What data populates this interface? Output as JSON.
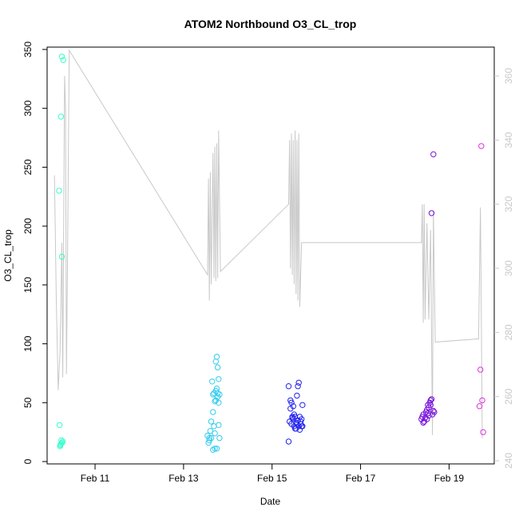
{
  "chart_data": {
    "type": "scatter",
    "title": "ATOM2 Northbound O3_CL_trop",
    "xlabel": "Date",
    "ylabel": "O3_CL_trop",
    "x_axis": {
      "unit": "date",
      "range": [
        "2016-02-09 22:00",
        "2016-02-20 00:30"
      ],
      "ticks": [
        {
          "value": "2016-02-11",
          "label": "Feb 11"
        },
        {
          "value": "2016-02-13",
          "label": "Feb 13"
        },
        {
          "value": "2016-02-15",
          "label": "Feb 15"
        },
        {
          "value": "2016-02-17",
          "label": "Feb 17"
        },
        {
          "value": "2016-02-19",
          "label": "Feb 19"
        }
      ]
    },
    "y_left": {
      "range": [
        -2,
        352
      ],
      "ticks": [
        0,
        50,
        100,
        150,
        200,
        250,
        300,
        350
      ]
    },
    "y_right": {
      "range": [
        239,
        369
      ],
      "ticks": [
        240,
        260,
        280,
        300,
        320,
        340,
        360
      ],
      "color": "#c8c8c8"
    },
    "series": [
      {
        "color": "#33ffcc",
        "points": [
          [
            "2016-02-10 04:30",
            230
          ],
          [
            "2016-02-10 05:30",
            293
          ],
          [
            "2016-02-10 06:00",
            344
          ],
          [
            "2016-02-10 06:45",
            341
          ],
          [
            "2016-02-10 06:00",
            174
          ],
          [
            "2016-02-10 04:45",
            31
          ],
          [
            "2016-02-10 05:00",
            13
          ],
          [
            "2016-02-10 05:30",
            15
          ],
          [
            "2016-02-10 05:45",
            18
          ],
          [
            "2016-02-10 06:00",
            16
          ],
          [
            "2016-02-10 06:30",
            17
          ],
          [
            "2016-02-10 05:15",
            14
          ]
        ]
      },
      {
        "color": "#33ccee",
        "points": [
          [
            "2016-02-13 13:00",
            22
          ],
          [
            "2016-02-13 13:30",
            16
          ],
          [
            "2016-02-13 14:00",
            18
          ],
          [
            "2016-02-13 14:30",
            26
          ],
          [
            "2016-02-13 15:00",
            34
          ],
          [
            "2016-02-13 15:30",
            68
          ],
          [
            "2016-02-13 16:00",
            42
          ],
          [
            "2016-02-13 16:30",
            58
          ],
          [
            "2016-02-13 17:00",
            51
          ],
          [
            "2016-02-13 17:30",
            60
          ],
          [
            "2016-02-13 18:00",
            62
          ],
          [
            "2016-02-13 18:30",
            55
          ],
          [
            "2016-02-13 19:00",
            70
          ],
          [
            "2016-02-13 17:30",
            85
          ],
          [
            "2016-02-13 18:00",
            89
          ],
          [
            "2016-02-13 18:30",
            80
          ],
          [
            "2016-02-13 16:00",
            10
          ],
          [
            "2016-02-13 17:00",
            11
          ],
          [
            "2016-02-13 18:00",
            11
          ],
          [
            "2016-02-13 19:00",
            31
          ],
          [
            "2016-02-13 19:30",
            20
          ],
          [
            "2016-02-13 15:00",
            20
          ],
          [
            "2016-02-13 16:30",
            30
          ],
          [
            "2016-02-13 18:30",
            58
          ],
          [
            "2016-02-13 17:00",
            24
          ],
          [
            "2016-02-13 19:00",
            50
          ],
          [
            "2016-02-13 14:00",
            20
          ],
          [
            "2016-02-13 16:00",
            57
          ],
          [
            "2016-02-13 17:30",
            52
          ],
          [
            "2016-02-13 19:30",
            57
          ]
        ]
      },
      {
        "color": "#2222ee",
        "points": [
          [
            "2016-02-15 09:00",
            17
          ],
          [
            "2016-02-15 09:30",
            34
          ],
          [
            "2016-02-15 10:00",
            52
          ],
          [
            "2016-02-15 10:30",
            50
          ],
          [
            "2016-02-15 11:00",
            38
          ],
          [
            "2016-02-15 11:30",
            36
          ],
          [
            "2016-02-15 12:00",
            30
          ],
          [
            "2016-02-15 12:30",
            28
          ],
          [
            "2016-02-15 13:00",
            33
          ],
          [
            "2016-02-15 13:30",
            56
          ],
          [
            "2016-02-15 14:00",
            64
          ],
          [
            "2016-02-15 14:30",
            67
          ],
          [
            "2016-02-15 15:00",
            38
          ],
          [
            "2016-02-15 15:30",
            32
          ],
          [
            "2016-02-15 16:00",
            30
          ],
          [
            "2016-02-15 16:30",
            48
          ],
          [
            "2016-02-15 09:00",
            64
          ],
          [
            "2016-02-15 10:00",
            45
          ],
          [
            "2016-02-15 11:00",
            37
          ],
          [
            "2016-02-15 12:00",
            40
          ],
          [
            "2016-02-15 13:00",
            28
          ],
          [
            "2016-02-15 14:00",
            35
          ],
          [
            "2016-02-15 15:00",
            27
          ],
          [
            "2016-02-15 16:00",
            36
          ],
          [
            "2016-02-15 10:30",
            32
          ],
          [
            "2016-02-15 12:30",
            38
          ],
          [
            "2016-02-15 14:30",
            30
          ],
          [
            "2016-02-15 16:30",
            30
          ],
          [
            "2016-02-15 11:30",
            47
          ],
          [
            "2016-02-15 13:30",
            32
          ],
          [
            "2016-02-15 15:30",
            34
          ]
        ]
      },
      {
        "color": "#7711dd",
        "points": [
          [
            "2016-02-18 09:00",
            36
          ],
          [
            "2016-02-18 09:30",
            38
          ],
          [
            "2016-02-18 10:00",
            40
          ],
          [
            "2016-02-18 10:30",
            34
          ],
          [
            "2016-02-18 11:00",
            37
          ],
          [
            "2016-02-18 11:30",
            42
          ],
          [
            "2016-02-18 12:00",
            44
          ],
          [
            "2016-02-18 12:30",
            48
          ],
          [
            "2016-02-18 13:00",
            46
          ],
          [
            "2016-02-18 13:30",
            50
          ],
          [
            "2016-02-18 14:00",
            52
          ],
          [
            "2016-02-18 14:30",
            53
          ],
          [
            "2016-02-18 15:00",
            40
          ],
          [
            "2016-02-18 15:30",
            43
          ],
          [
            "2016-02-18 16:00",
            42
          ],
          [
            "2016-02-18 14:30",
            211
          ],
          [
            "2016-02-18 15:30",
            261
          ],
          [
            "2016-02-18 12:00",
            36
          ],
          [
            "2016-02-18 13:00",
            39
          ],
          [
            "2016-02-18 14:00",
            48
          ],
          [
            "2016-02-18 10:00",
            33
          ],
          [
            "2016-02-18 12:30",
            41
          ]
        ]
      },
      {
        "color": "#dd33dd",
        "points": [
          [
            "2016-02-19 17:30",
            268
          ],
          [
            "2016-02-19 17:00",
            78
          ],
          [
            "2016-02-19 18:00",
            52
          ],
          [
            "2016-02-19 16:30",
            47
          ],
          [
            "2016-02-19 18:30",
            25
          ]
        ]
      }
    ],
    "line_series": {
      "axis": "right",
      "color": "#c8c8c8",
      "points": [
        [
          "2016-02-10 02:00",
          329
        ],
        [
          "2016-02-10 03:00",
          290
        ],
        [
          "2016-02-10 04:00",
          262
        ],
        [
          "2016-02-10 05:00",
          274
        ],
        [
          "2016-02-10 06:00",
          308
        ],
        [
          "2016-02-10 06:30",
          266
        ],
        [
          "2016-02-10 07:30",
          360
        ],
        [
          "2016-02-10 08:00",
          350
        ],
        [
          "2016-02-10 08:30",
          267
        ],
        [
          "2016-02-10 09:00",
          298
        ],
        [
          "2016-02-10 10:00",
          368
        ],
        [
          "2016-02-13 13:00",
          298
        ],
        [
          "2016-02-13 13:30",
          328
        ],
        [
          "2016-02-13 14:00",
          290
        ],
        [
          "2016-02-13 14:30",
          330
        ],
        [
          "2016-02-13 15:00",
          295
        ],
        [
          "2016-02-13 16:00",
          336
        ],
        [
          "2016-02-13 16:30",
          297
        ],
        [
          "2016-02-13 17:00",
          338
        ],
        [
          "2016-02-13 17:30",
          296
        ],
        [
          "2016-02-13 18:00",
          339
        ],
        [
          "2016-02-13 18:30",
          297
        ],
        [
          "2016-02-13 19:00",
          343
        ],
        [
          "2016-02-13 20:00",
          299
        ],
        [
          "2016-02-15 09:00",
          320
        ],
        [
          "2016-02-15 09:30",
          340
        ],
        [
          "2016-02-15 10:00",
          300
        ],
        [
          "2016-02-15 10:30",
          342
        ],
        [
          "2016-02-15 11:00",
          298
        ],
        [
          "2016-02-15 11:30",
          340
        ],
        [
          "2016-02-15 12:00",
          295
        ],
        [
          "2016-02-15 12:30",
          343
        ],
        [
          "2016-02-15 13:00",
          292
        ],
        [
          "2016-02-15 13:30",
          340
        ],
        [
          "2016-02-15 14:00",
          290
        ],
        [
          "2016-02-15 14:30",
          342
        ],
        [
          "2016-02-15 15:00",
          288
        ],
        [
          "2016-02-15 16:00",
          308
        ],
        [
          "2016-02-18 09:00",
          308
        ],
        [
          "2016-02-18 09:30",
          320
        ],
        [
          "2016-02-18 10:00",
          283
        ],
        [
          "2016-02-18 10:30",
          320
        ],
        [
          "2016-02-18 11:00",
          284
        ],
        [
          "2016-02-18 12:00",
          314
        ],
        [
          "2016-02-18 13:00",
          284
        ],
        [
          "2016-02-18 14:00",
          312
        ],
        [
          "2016-02-18 15:00",
          248
        ],
        [
          "2016-02-18 15:30",
          318
        ],
        [
          "2016-02-18 16:30",
          277
        ],
        [
          "2016-02-19 16:00",
          278
        ],
        [
          "2016-02-19 17:00",
          319
        ],
        [
          "2016-02-19 18:00",
          247
        ]
      ]
    },
    "grid": false,
    "legend": "none"
  }
}
